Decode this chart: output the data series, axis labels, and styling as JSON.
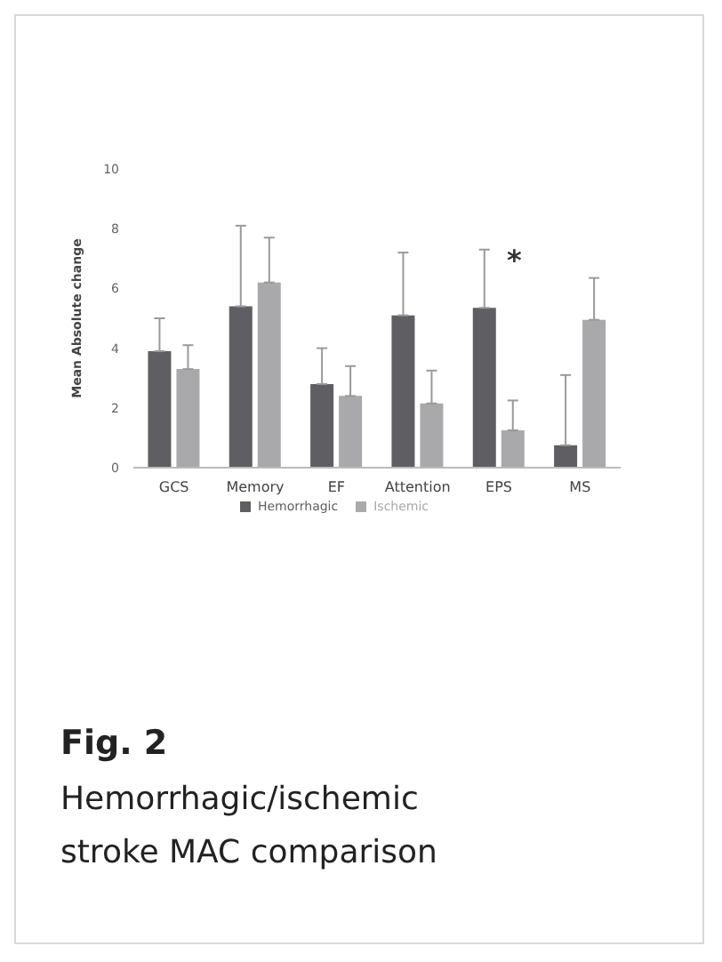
{
  "chart_data": {
    "type": "bar",
    "title": "Fig. 2",
    "subtitle": "Hemorrhagic/ischemic stroke MAC comparison",
    "ylabel": "Mean Absolute change",
    "categories": [
      "GCS",
      "Memory",
      "EF",
      "Attention",
      "EPS",
      "MS"
    ],
    "series": [
      {
        "name": "Hemorrhagic",
        "color": "#5f5f63",
        "values": [
          3.9,
          5.4,
          2.8,
          5.1,
          5.35,
          0.75
        ],
        "errors": [
          [
            3.9,
            5.0
          ],
          [
            5.4,
            8.1
          ],
          [
            2.8,
            4.0
          ],
          [
            5.1,
            7.2
          ],
          [
            5.35,
            7.3
          ],
          [
            0.75,
            3.1
          ]
        ]
      },
      {
        "name": "Ischemic",
        "color": "#a9a9ab",
        "values": [
          3.3,
          6.2,
          2.4,
          2.15,
          1.25,
          4.95
        ],
        "errors": [
          [
            3.3,
            4.1
          ],
          [
            6.2,
            7.7
          ],
          [
            2.4,
            3.4
          ],
          [
            2.15,
            3.25
          ],
          [
            1.25,
            2.25
          ],
          [
            4.95,
            6.35
          ]
        ]
      }
    ],
    "ylim": [
      0,
      10
    ],
    "yticks": [
      0,
      2,
      4,
      6,
      8,
      10
    ],
    "grid": false,
    "legend": "bottom",
    "annotations": [
      "*"
    ]
  }
}
